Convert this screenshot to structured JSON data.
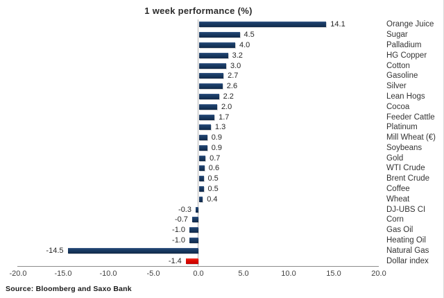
{
  "chart": {
    "title": "1 week performance (%)",
    "source": "Source: Bloomberg and Saxo Bank"
  },
  "chart_data": {
    "type": "bar",
    "orientation": "horizontal",
    "title": "1 week performance (%)",
    "categories": [
      "Orange Juice",
      "Sugar",
      "Palladium",
      "HG Copper",
      "Cotton",
      "Gasoline",
      "Silver",
      "Lean Hogs",
      "Cocoa",
      "Feeder Cattle",
      "Platinum",
      "Mill Wheat (€)",
      "Soybeans",
      "Gold",
      "WTI Crude",
      "Brent Crude",
      "Coffee",
      "Wheat",
      "DJ-UBS CI",
      "Corn",
      "Gas Oil",
      "Heating Oil",
      "Natural Gas",
      "Dollar index"
    ],
    "values": [
      14.1,
      4.5,
      4.0,
      3.2,
      3.0,
      2.7,
      2.6,
      2.2,
      2.0,
      1.7,
      1.3,
      0.9,
      0.9,
      0.7,
      0.6,
      0.5,
      0.5,
      0.4,
      -0.3,
      -0.7,
      -1.0,
      -1.0,
      -14.5,
      -1.4
    ],
    "value_labels": [
      "14.1",
      "4.5",
      "4.0",
      "3.2",
      "3.0",
      "2.7",
      "2.6",
      "2.2",
      "2.0",
      "1.7",
      "1.3",
      "0.9",
      "0.9",
      "0.7",
      "0.6",
      "0.5",
      "0.5",
      "0.4",
      "-0.3",
      "-0.7",
      "-1.0",
      "-1.0",
      "-14.5",
      "-1.4"
    ],
    "highlight_index": 23,
    "bar_color_default": "#17375E",
    "bar_color_highlight": "#DF0B00",
    "xlim": [
      -20,
      20
    ],
    "xticks": [
      -20,
      -15,
      -10,
      -5,
      0,
      5,
      10,
      15,
      20
    ],
    "xtick_labels": [
      "-20.0",
      "-15.0",
      "-10.0",
      "-5.0",
      "0.0",
      "5.0",
      "10.0",
      "15.0",
      "20.0"
    ],
    "grid": false,
    "legend": "none"
  }
}
